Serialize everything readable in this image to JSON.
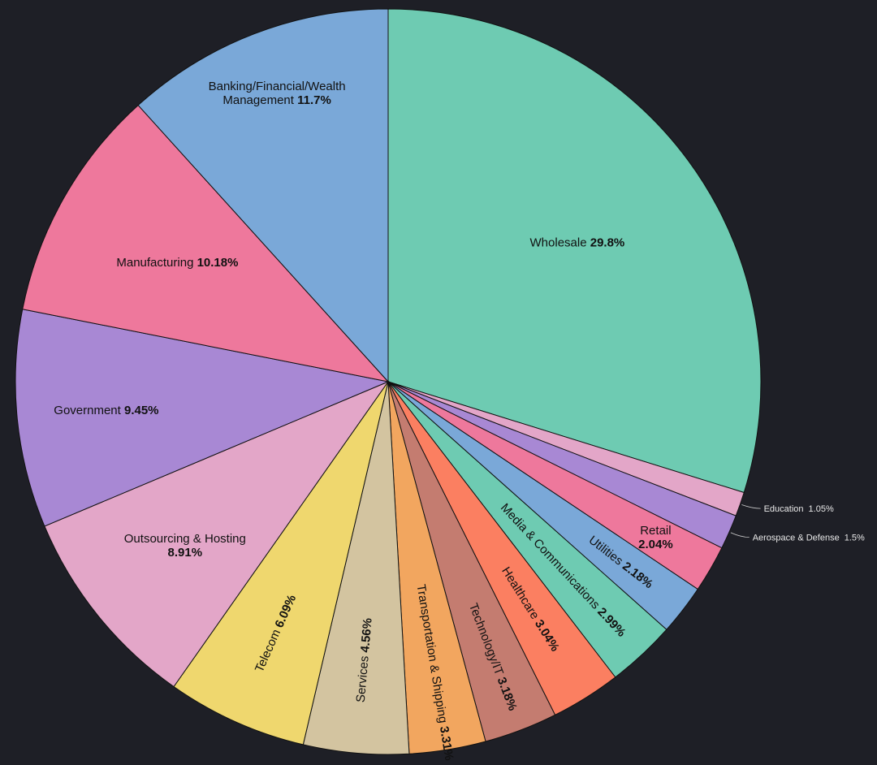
{
  "chart_data": {
    "type": "pie",
    "slices": [
      {
        "label": "Wholesale",
        "value": 29.8,
        "value_text": "29.8%",
        "color": "#6ecbb2"
      },
      {
        "label": "Education",
        "value": 1.05,
        "value_text": "1.05%",
        "color": "#e3a6c8"
      },
      {
        "label": "Aerospace & Defense",
        "value": 1.5,
        "value_text": "1.5%",
        "color": "#a888d4"
      },
      {
        "label": "Retail",
        "value": 2.04,
        "value_text": "2.04%",
        "color": "#ee789c"
      },
      {
        "label": "Utilities",
        "value": 2.18,
        "value_text": "2.18%",
        "color": "#7aa8d8"
      },
      {
        "label": "Media & Communications",
        "value": 2.99,
        "value_text": "2.99%",
        "color": "#6ecbb2"
      },
      {
        "label": "Healthcare",
        "value": 3.04,
        "value_text": "3.04%",
        "color": "#fb7f61"
      },
      {
        "label": "Technology/IT",
        "value": 3.18,
        "value_text": "3.18%",
        "color": "#c47c70"
      },
      {
        "label": "Transportation & Shipping",
        "value": 3.31,
        "value_text": "3.31%",
        "color": "#f2a65f"
      },
      {
        "label": "Services",
        "value": 4.56,
        "value_text": "4.56%",
        "color": "#d3c4a0"
      },
      {
        "label": "Telecom",
        "value": 6.09,
        "value_text": "6.09%",
        "color": "#efd76e"
      },
      {
        "label": "Outsourcing & Hosting",
        "value": 8.91,
        "value_text": "8.91%",
        "color": "#e3a6c8"
      },
      {
        "label": "Government",
        "value": 9.45,
        "value_text": "9.45%",
        "color": "#a888d4"
      },
      {
        "label": "Manufacturing",
        "value": 10.18,
        "value_text": "10.18%",
        "color": "#ee789c"
      },
      {
        "label": "Banking/Financial/Wealth Management",
        "value": 11.7,
        "value_text": "11.7%",
        "color": "#7aa8d8"
      }
    ]
  }
}
